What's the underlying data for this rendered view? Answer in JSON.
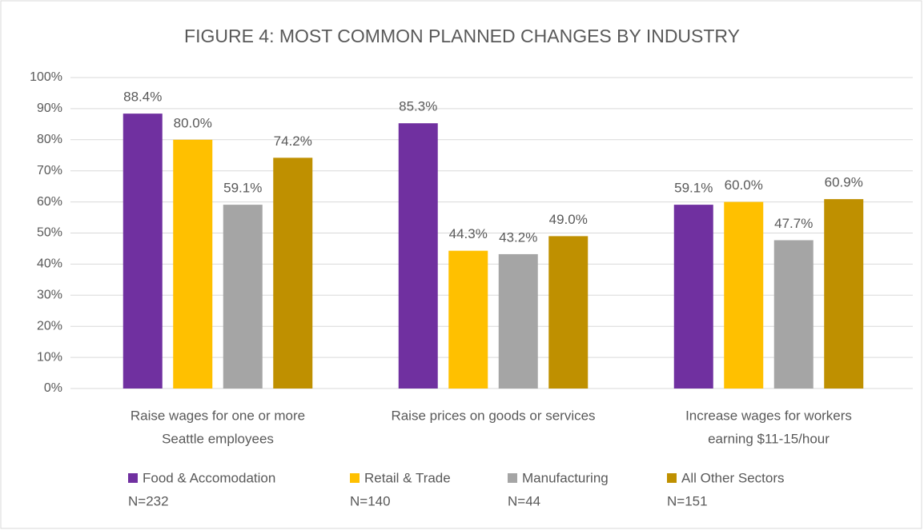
{
  "chart_data": {
    "type": "bar",
    "title": "FIGURE 4: MOST COMMON PLANNED CHANGES BY INDUSTRY",
    "categories": [
      [
        "Raise wages for one or more",
        "Seattle employees"
      ],
      [
        "Raise prices on goods or services"
      ],
      [
        "Increase wages for workers",
        "earning $11-15/hour"
      ]
    ],
    "series": [
      {
        "name": "Food & Accomodation",
        "sample": "N=232",
        "color": "#7030a0",
        "values": [
          88.4,
          85.3,
          59.1
        ],
        "value_labels": [
          "88.4%",
          "85.3%",
          "59.1%"
        ]
      },
      {
        "name": "Retail & Trade",
        "sample": "N=140",
        "color": "#ffc000",
        "values": [
          80.0,
          44.3,
          60.0
        ],
        "value_labels": [
          "80.0%",
          "44.3%",
          "60.0%"
        ]
      },
      {
        "name": "Manufacturing",
        "sample": "N=44",
        "color": "#a5a5a5",
        "values": [
          59.1,
          43.2,
          47.7
        ],
        "value_labels": [
          "59.1%",
          "43.2%",
          "47.7%"
        ]
      },
      {
        "name": "All Other Sectors",
        "sample": "N=151",
        "color": "#bf9000",
        "values": [
          74.2,
          49.0,
          60.9
        ],
        "value_labels": [
          "74.2%",
          "49.0%",
          "60.9%"
        ]
      }
    ],
    "ylim": [
      0,
      100
    ],
    "yticks": [
      {
        "value": 0,
        "label": "0%"
      },
      {
        "value": 10,
        "label": "10%"
      },
      {
        "value": 20,
        "label": "20%"
      },
      {
        "value": 30,
        "label": "30%"
      },
      {
        "value": 40,
        "label": "40%"
      },
      {
        "value": 50,
        "label": "50%"
      },
      {
        "value": 60,
        "label": "60%"
      },
      {
        "value": 70,
        "label": "70%"
      },
      {
        "value": 80,
        "label": "80%"
      },
      {
        "value": 90,
        "label": "90%"
      },
      {
        "value": 100,
        "label": "100%"
      }
    ],
    "grid": true,
    "legend": "bottom"
  }
}
